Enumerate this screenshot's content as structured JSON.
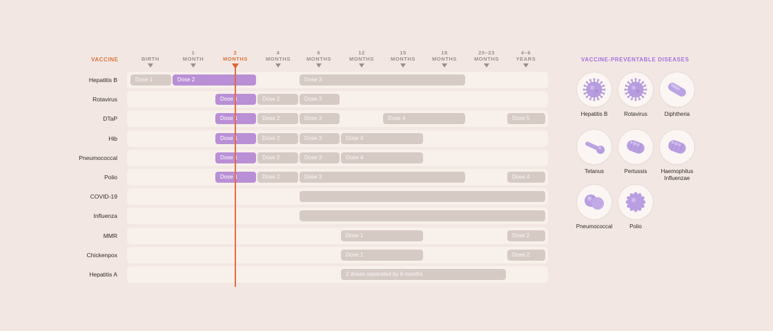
{
  "schedule": {
    "header_label": "VACCINE",
    "columns": [
      {
        "l1": "",
        "l2": "BIRTH",
        "current": false
      },
      {
        "l1": "1",
        "l2": "MONTH",
        "current": false
      },
      {
        "l1": "2",
        "l2": "MONTHS",
        "current": true
      },
      {
        "l1": "4",
        "l2": "MONTHS",
        "current": false
      },
      {
        "l1": "6",
        "l2": "MONTHS",
        "current": false
      },
      {
        "l1": "12",
        "l2": "MONTHS",
        "current": false
      },
      {
        "l1": "15",
        "l2": "MONTHS",
        "current": false
      },
      {
        "l1": "18",
        "l2": "MONTHS",
        "current": false
      },
      {
        "l1": "20–23",
        "l2": "MONTHS",
        "current": false
      },
      {
        "l1": "4–6",
        "l2": "YEARS",
        "current": false
      }
    ],
    "rows": [
      {
        "name": "Hepatitis B",
        "bars": [
          {
            "label": "Dose 1",
            "from": 0,
            "to": 0,
            "purple": false
          },
          {
            "label": "Dose 2",
            "from": 1,
            "to": 2,
            "purple": true
          },
          {
            "label": "Dose 3",
            "from": 4,
            "to": 7,
            "purple": false
          }
        ]
      },
      {
        "name": "Rotavirus",
        "bars": [
          {
            "label": "Dose 1",
            "from": 2,
            "to": 2,
            "purple": true
          },
          {
            "label": "Dose 2",
            "from": 3,
            "to": 3,
            "purple": false
          },
          {
            "label": "Dose 3",
            "from": 4,
            "to": 4,
            "purple": false
          }
        ]
      },
      {
        "name": "DTaP",
        "bars": [
          {
            "label": "Dose 1",
            "from": 2,
            "to": 2,
            "purple": true
          },
          {
            "label": "Dose 2",
            "from": 3,
            "to": 3,
            "purple": false
          },
          {
            "label": "Dose 3",
            "from": 4,
            "to": 4,
            "purple": false
          },
          {
            "label": "Dose 4",
            "from": 6,
            "to": 7,
            "purple": false
          },
          {
            "label": "Dose 5",
            "from": 9,
            "to": 9,
            "purple": false
          }
        ]
      },
      {
        "name": "Hib",
        "bars": [
          {
            "label": "Dose 1",
            "from": 2,
            "to": 2,
            "purple": true
          },
          {
            "label": "Dose 2",
            "from": 3,
            "to": 3,
            "purple": false
          },
          {
            "label": "Dose 3",
            "from": 4,
            "to": 4,
            "purple": false
          },
          {
            "label": "Dose 4",
            "from": 5,
            "to": 6,
            "purple": false
          }
        ]
      },
      {
        "name": "Pneumococcal",
        "bars": [
          {
            "label": "Dose 1",
            "from": 2,
            "to": 2,
            "purple": true
          },
          {
            "label": "Dose 2",
            "from": 3,
            "to": 3,
            "purple": false
          },
          {
            "label": "Dose 3",
            "from": 4,
            "to": 4,
            "purple": false
          },
          {
            "label": "Dose 4",
            "from": 5,
            "to": 6,
            "purple": false
          }
        ]
      },
      {
        "name": "Polio",
        "bars": [
          {
            "label": "Dose 1",
            "from": 2,
            "to": 2,
            "purple": true
          },
          {
            "label": "Dose 2",
            "from": 3,
            "to": 3,
            "purple": false
          },
          {
            "label": "Dose 3",
            "from": 4,
            "to": 7,
            "purple": false
          },
          {
            "label": "Dose 4",
            "from": 9,
            "to": 9,
            "purple": false
          }
        ]
      },
      {
        "name": "COVID-19",
        "bars": [
          {
            "label": "",
            "from": 4,
            "to": 9,
            "purple": false
          }
        ]
      },
      {
        "name": "Influenza",
        "bars": [
          {
            "label": "",
            "from": 4,
            "to": 9,
            "purple": false
          }
        ]
      },
      {
        "name": "MMR",
        "bars": [
          {
            "label": "Dose 1",
            "from": 5,
            "to": 6,
            "purple": false
          },
          {
            "label": "Dose 2",
            "from": 9,
            "to": 9,
            "purple": false
          }
        ]
      },
      {
        "name": "Chickenpox",
        "bars": [
          {
            "label": "Dose 1",
            "from": 5,
            "to": 6,
            "purple": false
          },
          {
            "label": "Dose 2",
            "from": 9,
            "to": 9,
            "purple": false
          }
        ]
      },
      {
        "name": "Hepatitis A",
        "bars": [
          {
            "label": "2 doses separated by 6 months",
            "from": 5,
            "to": 8,
            "purple": false
          }
        ]
      }
    ],
    "current_column": 2
  },
  "diseases": {
    "title": "VACCINE-PREVENTABLE DISEASES",
    "items": [
      {
        "name": "Hepatitis B",
        "icon": "spiky-virus-icon"
      },
      {
        "name": "Rotavirus",
        "icon": "spiky-virus-icon"
      },
      {
        "name": "Diphtheria",
        "icon": "rod-bacterium-icon"
      },
      {
        "name": "Tetanus",
        "icon": "club-bacterium-icon"
      },
      {
        "name": "Pertussis",
        "icon": "capsule-bacterium-icon"
      },
      {
        "name": "Haemophilus Influenzae",
        "icon": "capsule-bacterium-icon"
      },
      {
        "name": "Pneumococcal",
        "icon": "diplococcus-icon"
      },
      {
        "name": "Polio",
        "icon": "round-virus-icon"
      }
    ]
  },
  "colors": {
    "accent_current": "#e56a40",
    "dose_purple": "#b98fd6",
    "dose_grey": "#d6cac5",
    "diseases_title": "#a571de"
  }
}
